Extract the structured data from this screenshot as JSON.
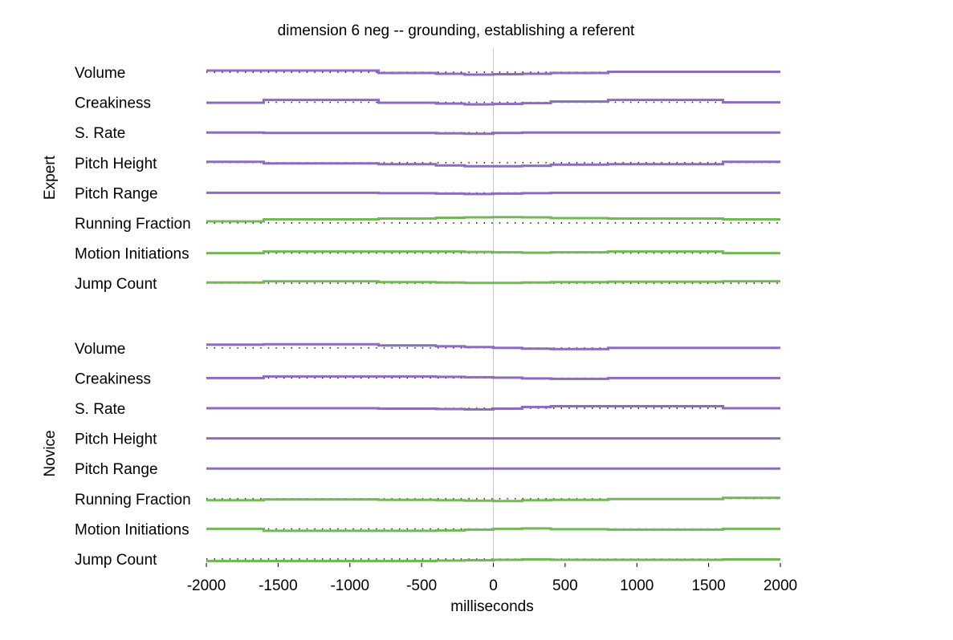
{
  "chart_data": {
    "type": "line",
    "title": "dimension 6 neg -- grounding, establishing a referent",
    "xlabel": "milliseconds",
    "xlim": [
      -2000,
      2000
    ],
    "xticks": [
      -2000,
      -1500,
      -1000,
      -500,
      0,
      500,
      1000,
      1500,
      2000
    ],
    "grid": false,
    "colors": {
      "prosodic": "#8c6bc0",
      "motion": "#72b857",
      "baseline": "#000000",
      "zero_line": "#c8c8c8"
    },
    "x_edges": [
      -2000,
      -1600,
      -800,
      -400,
      -200,
      0,
      200,
      400,
      800,
      1600,
      2000
    ],
    "groups": [
      {
        "name": "Expert",
        "series": [
          {
            "name": "Volume",
            "kind": "prosodic",
            "offsets": [
              -0.2,
              -0.2,
              0.1,
              0.2,
              0.3,
              0.25,
              0.2,
              0.1,
              -0.05,
              -0.05
            ]
          },
          {
            "name": "Creakiness",
            "kind": "prosodic",
            "offsets": [
              0.05,
              -0.3,
              0.05,
              0.15,
              0.25,
              0.2,
              0.1,
              -0.1,
              -0.3,
              0.0
            ]
          },
          {
            "name": "S. Rate",
            "kind": "prosodic",
            "offsets": [
              0.0,
              0.05,
              0.05,
              0.1,
              0.15,
              0.05,
              0.0,
              0.0,
              0.0,
              0.0
            ]
          },
          {
            "name": "Pitch Height",
            "kind": "prosodic",
            "offsets": [
              -0.1,
              0.1,
              0.2,
              0.35,
              0.45,
              0.45,
              0.4,
              0.25,
              0.2,
              -0.1
            ]
          },
          {
            "name": "Pitch Range",
            "kind": "prosodic",
            "offsets": [
              0.0,
              0.0,
              0.05,
              0.1,
              0.15,
              0.1,
              0.05,
              0.0,
              0.0,
              0.0
            ]
          },
          {
            "name": "Running Fraction",
            "kind": "motion",
            "offsets": [
              -0.2,
              -0.45,
              -0.55,
              -0.65,
              -0.7,
              -0.72,
              -0.7,
              -0.6,
              -0.55,
              -0.45
            ]
          },
          {
            "name": "Motion Initiations",
            "kind": "motion",
            "offsets": [
              0.0,
              -0.2,
              -0.2,
              -0.2,
              -0.15,
              -0.1,
              -0.05,
              -0.1,
              -0.2,
              0.0
            ]
          },
          {
            "name": "Jump Count",
            "kind": "motion",
            "offsets": [
              -0.1,
              -0.25,
              -0.15,
              -0.1,
              -0.05,
              -0.05,
              -0.1,
              -0.15,
              -0.2,
              -0.25
            ]
          }
        ]
      },
      {
        "name": "Novice",
        "series": [
          {
            "name": "Volume",
            "kind": "prosodic",
            "offsets": [
              -0.4,
              -0.45,
              -0.3,
              -0.2,
              -0.1,
              0.0,
              0.1,
              0.15,
              0.0,
              0.0
            ]
          },
          {
            "name": "Creakiness",
            "kind": "prosodic",
            "offsets": [
              0.0,
              -0.2,
              -0.2,
              -0.15,
              -0.1,
              -0.05,
              0.05,
              0.1,
              0.0,
              0.0
            ]
          },
          {
            "name": "S. Rate",
            "kind": "prosodic",
            "offsets": [
              0.0,
              0.0,
              0.05,
              0.1,
              0.15,
              0.05,
              -0.15,
              -0.25,
              -0.25,
              0.0
            ]
          },
          {
            "name": "Pitch Height",
            "kind": "prosodic",
            "offsets": [
              0.0,
              0.0,
              0.0,
              0.0,
              0.0,
              0.0,
              0.0,
              0.0,
              0.0,
              0.0
            ]
          },
          {
            "name": "Pitch Range",
            "kind": "prosodic",
            "offsets": [
              0.0,
              0.0,
              0.0,
              0.0,
              0.0,
              0.0,
              0.0,
              0.0,
              0.0,
              0.0
            ]
          },
          {
            "name": "Running Fraction",
            "kind": "motion",
            "offsets": [
              0.2,
              0.1,
              0.15,
              0.2,
              0.25,
              0.3,
              0.2,
              0.15,
              0.05,
              -0.1
            ]
          },
          {
            "name": "Motion Initiations",
            "kind": "motion",
            "offsets": [
              0.0,
              0.25,
              0.25,
              0.2,
              0.1,
              0.0,
              -0.05,
              0.05,
              0.1,
              0.0
            ]
          },
          {
            "name": "Jump Count",
            "kind": "motion",
            "offsets": [
              0.25,
              0.25,
              0.25,
              0.2,
              0.15,
              0.1,
              0.05,
              0.1,
              0.1,
              0.05
            ]
          }
        ]
      }
    ]
  }
}
